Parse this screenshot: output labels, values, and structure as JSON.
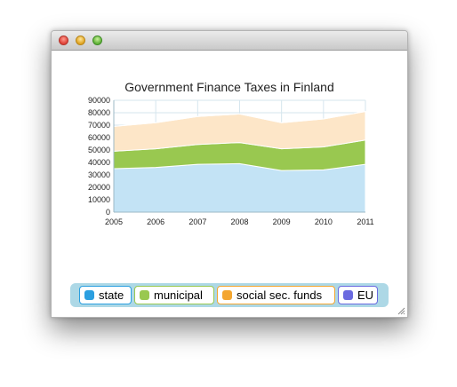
{
  "window": {
    "title": ""
  },
  "chart_data": {
    "type": "area",
    "stacked": true,
    "title": "Government Finance Taxes in Finland",
    "x": [
      2005,
      2006,
      2007,
      2008,
      2009,
      2010,
      2011
    ],
    "ylim": [
      0,
      90000
    ],
    "yticks": [
      0,
      10000,
      20000,
      30000,
      40000,
      50000,
      60000,
      70000,
      80000,
      90000
    ],
    "grid": true,
    "legend_position": "bottom",
    "series": [
      {
        "name": "state",
        "color": "#c3e3f5",
        "legend_color": "#2b9fe0",
        "values": [
          35000,
          36000,
          38500,
          39000,
          33500,
          34000,
          38500
        ]
      },
      {
        "name": "municipal",
        "color": "#99c850",
        "legend_color": "#99c850",
        "values": [
          14000,
          15000,
          16000,
          17000,
          17500,
          18500,
          19500
        ]
      },
      {
        "name": "social sec. funds",
        "color": "#fde6c8",
        "legend_color": "#f4a630",
        "values": [
          20000,
          21000,
          22500,
          23000,
          21000,
          22500,
          23000
        ]
      },
      {
        "name": "EU",
        "color": "#6a6ae0",
        "legend_color": "#6a6ae0",
        "values": [
          0,
          0,
          0,
          0,
          0,
          0,
          0
        ]
      }
    ]
  },
  "legend": {
    "background": "#add8e6",
    "items": [
      {
        "label": "state",
        "border": "#2b9fe0",
        "swatch": "#2b9fe0"
      },
      {
        "label": "municipal",
        "border": "#99c850",
        "swatch": "#99c850"
      },
      {
        "label": "social sec. funds",
        "border": "#f4a630",
        "swatch": "#f4a630"
      },
      {
        "label": "EU",
        "border": "#6a6ae0",
        "swatch": "#6a6ae0"
      }
    ]
  }
}
